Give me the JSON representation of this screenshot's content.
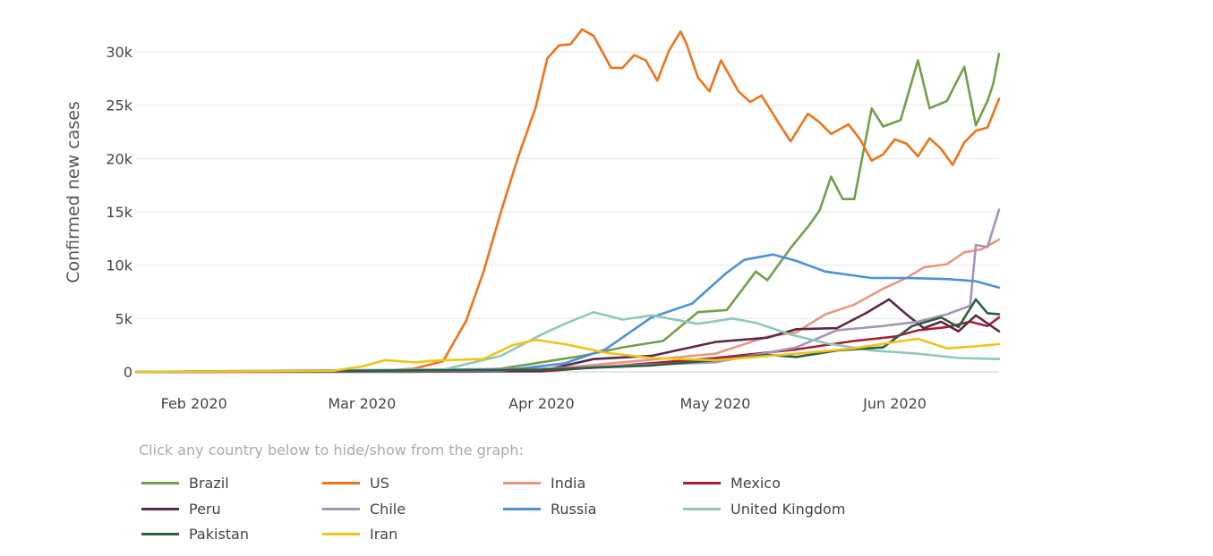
{
  "chart_data": {
    "type": "line",
    "ylabel": "Confirmed new cases",
    "xlabel": "",
    "ylim": [
      0,
      30000
    ],
    "yticks": [
      {
        "value": 0,
        "label": "0"
      },
      {
        "value": 5000,
        "label": "5k"
      },
      {
        "value": 10000,
        "label": "10k"
      },
      {
        "value": 15000,
        "label": "15k"
      },
      {
        "value": 20000,
        "label": "20k"
      },
      {
        "value": 25000,
        "label": "25k"
      },
      {
        "value": 30000,
        "label": "30k"
      }
    ],
    "x_range": [
      "2020-01-22",
      "2020-06-19"
    ],
    "xticks": [
      {
        "date": "2020-02-01",
        "label": "Feb 2020"
      },
      {
        "date": "2020-03-01",
        "label": "Mar 2020"
      },
      {
        "date": "2020-04-01",
        "label": "Apr 2020"
      },
      {
        "date": "2020-05-01",
        "label": "May 2020"
      },
      {
        "date": "2020-06-01",
        "label": "Jun 2020"
      }
    ],
    "grid": "horizontal",
    "legend_position": "bottom",
    "series": [
      {
        "name": "Brazil",
        "color": "#739e4b",
        "points": [
          [
            "2020-01-22",
            0
          ],
          [
            "2020-03-10",
            0
          ],
          [
            "2020-03-25",
            300
          ],
          [
            "2020-04-01",
            900
          ],
          [
            "2020-04-08",
            1500
          ],
          [
            "2020-04-15",
            2300
          ],
          [
            "2020-04-22",
            2900
          ],
          [
            "2020-04-28",
            5600
          ],
          [
            "2020-05-03",
            5800
          ],
          [
            "2020-05-08",
            9400
          ],
          [
            "2020-05-10",
            8600
          ],
          [
            "2020-05-14",
            11600
          ],
          [
            "2020-05-17",
            13600
          ],
          [
            "2020-05-19",
            15100
          ],
          [
            "2020-05-21",
            18300
          ],
          [
            "2020-05-23",
            16200
          ],
          [
            "2020-05-25",
            16200
          ],
          [
            "2020-05-28",
            24700
          ],
          [
            "2020-05-30",
            23000
          ],
          [
            "2020-06-02",
            23600
          ],
          [
            "2020-06-05",
            29200
          ],
          [
            "2020-06-07",
            24700
          ],
          [
            "2020-06-10",
            25400
          ],
          [
            "2020-06-13",
            28600
          ],
          [
            "2020-06-15",
            23100
          ],
          [
            "2020-06-17",
            25400
          ],
          [
            "2020-06-18",
            27000
          ],
          [
            "2020-06-19",
            29800
          ]
        ]
      },
      {
        "name": "US",
        "color": "#f0731c",
        "points": [
          [
            "2020-01-22",
            0
          ],
          [
            "2020-03-01",
            0
          ],
          [
            "2020-03-10",
            300
          ],
          [
            "2020-03-15",
            1000
          ],
          [
            "2020-03-19",
            4800
          ],
          [
            "2020-03-22",
            9400
          ],
          [
            "2020-03-25",
            15000
          ],
          [
            "2020-03-28",
            20200
          ],
          [
            "2020-03-31",
            24800
          ],
          [
            "2020-04-02",
            29400
          ],
          [
            "2020-04-04",
            30600
          ],
          [
            "2020-04-06",
            30700
          ],
          [
            "2020-04-08",
            32100
          ],
          [
            "2020-04-10",
            31500
          ],
          [
            "2020-04-13",
            28500
          ],
          [
            "2020-04-15",
            28500
          ],
          [
            "2020-04-17",
            29700
          ],
          [
            "2020-04-19",
            29200
          ],
          [
            "2020-04-21",
            27300
          ],
          [
            "2020-04-23",
            30100
          ],
          [
            "2020-04-25",
            31900
          ],
          [
            "2020-04-26",
            30800
          ],
          [
            "2020-04-28",
            27600
          ],
          [
            "2020-04-30",
            26300
          ],
          [
            "2020-05-02",
            29200
          ],
          [
            "2020-05-05",
            26300
          ],
          [
            "2020-05-07",
            25300
          ],
          [
            "2020-05-09",
            25900
          ],
          [
            "2020-05-12",
            23300
          ],
          [
            "2020-05-14",
            21600
          ],
          [
            "2020-05-17",
            24200
          ],
          [
            "2020-05-19",
            23400
          ],
          [
            "2020-05-21",
            22300
          ],
          [
            "2020-05-24",
            23200
          ],
          [
            "2020-05-26",
            21800
          ],
          [
            "2020-05-28",
            19800
          ],
          [
            "2020-05-30",
            20400
          ],
          [
            "2020-06-01",
            21800
          ],
          [
            "2020-06-03",
            21400
          ],
          [
            "2020-06-05",
            20200
          ],
          [
            "2020-06-07",
            21900
          ],
          [
            "2020-06-09",
            20900
          ],
          [
            "2020-06-11",
            19400
          ],
          [
            "2020-06-13",
            21500
          ],
          [
            "2020-06-15",
            22600
          ],
          [
            "2020-06-17",
            22900
          ],
          [
            "2020-06-19",
            25600
          ]
        ]
      },
      {
        "name": "India",
        "color": "#e8977f",
        "points": [
          [
            "2020-01-22",
            0
          ],
          [
            "2020-03-20",
            0
          ],
          [
            "2020-04-01",
            200
          ],
          [
            "2020-04-15",
            900
          ],
          [
            "2020-05-01",
            1700
          ],
          [
            "2020-05-10",
            3300
          ],
          [
            "2020-05-15",
            3700
          ],
          [
            "2020-05-20",
            5400
          ],
          [
            "2020-05-25",
            6300
          ],
          [
            "2020-05-30",
            7800
          ],
          [
            "2020-06-03",
            8800
          ],
          [
            "2020-06-06",
            9800
          ],
          [
            "2020-06-10",
            10100
          ],
          [
            "2020-06-13",
            11200
          ],
          [
            "2020-06-16",
            11500
          ],
          [
            "2020-06-19",
            12400
          ]
        ]
      },
      {
        "name": "Mexico",
        "color": "#a42133",
        "points": [
          [
            "2020-01-22",
            0
          ],
          [
            "2020-04-01",
            50
          ],
          [
            "2020-04-15",
            600
          ],
          [
            "2020-05-01",
            1300
          ],
          [
            "2020-05-15",
            2100
          ],
          [
            "2020-05-25",
            2900
          ],
          [
            "2020-06-01",
            3300
          ],
          [
            "2020-06-05",
            3900
          ],
          [
            "2020-06-10",
            4200
          ],
          [
            "2020-06-14",
            4700
          ],
          [
            "2020-06-17",
            4300
          ],
          [
            "2020-06-19",
            5100
          ]
        ]
      },
      {
        "name": "Peru",
        "color": "#5c2847",
        "points": [
          [
            "2020-01-22",
            0
          ],
          [
            "2020-04-01",
            100
          ],
          [
            "2020-04-10",
            1200
          ],
          [
            "2020-04-20",
            1500
          ],
          [
            "2020-05-01",
            2800
          ],
          [
            "2020-05-10",
            3200
          ],
          [
            "2020-05-15",
            4000
          ],
          [
            "2020-05-22",
            4100
          ],
          [
            "2020-05-27",
            5500
          ],
          [
            "2020-05-31",
            6800
          ],
          [
            "2020-06-03",
            5400
          ],
          [
            "2020-06-06",
            4100
          ],
          [
            "2020-06-09",
            4700
          ],
          [
            "2020-06-12",
            3800
          ],
          [
            "2020-06-15",
            5300
          ],
          [
            "2020-06-19",
            3800
          ]
        ]
      },
      {
        "name": "Chile",
        "color": "#a694b5",
        "points": [
          [
            "2020-01-22",
            0
          ],
          [
            "2020-04-01",
            300
          ],
          [
            "2020-05-01",
            900
          ],
          [
            "2020-05-15",
            2300
          ],
          [
            "2020-05-22",
            3900
          ],
          [
            "2020-05-30",
            4300
          ],
          [
            "2020-06-05",
            4700
          ],
          [
            "2020-06-10",
            5400
          ],
          [
            "2020-06-14",
            6200
          ],
          [
            "2020-06-15",
            11900
          ],
          [
            "2020-06-17",
            11700
          ],
          [
            "2020-06-19",
            15200
          ]
        ]
      },
      {
        "name": "Russia",
        "color": "#4d91d5",
        "points": [
          [
            "2020-01-22",
            0
          ],
          [
            "2020-03-25",
            100
          ],
          [
            "2020-04-05",
            800
          ],
          [
            "2020-04-12",
            2100
          ],
          [
            "2020-04-20",
            5100
          ],
          [
            "2020-04-27",
            6400
          ],
          [
            "2020-05-03",
            9300
          ],
          [
            "2020-05-06",
            10500
          ],
          [
            "2020-05-11",
            11000
          ],
          [
            "2020-05-15",
            10400
          ],
          [
            "2020-05-20",
            9400
          ],
          [
            "2020-05-28",
            8800
          ],
          [
            "2020-06-03",
            8800
          ],
          [
            "2020-06-10",
            8700
          ],
          [
            "2020-06-15",
            8500
          ],
          [
            "2020-06-19",
            7900
          ]
        ]
      },
      {
        "name": "United Kingdom",
        "color": "#8ec8bb",
        "points": [
          [
            "2020-01-22",
            0
          ],
          [
            "2020-03-15",
            200
          ],
          [
            "2020-03-25",
            1500
          ],
          [
            "2020-04-01",
            3500
          ],
          [
            "2020-04-05",
            4500
          ],
          [
            "2020-04-10",
            5600
          ],
          [
            "2020-04-15",
            4900
          ],
          [
            "2020-04-20",
            5300
          ],
          [
            "2020-04-28",
            4500
          ],
          [
            "2020-05-04",
            5000
          ],
          [
            "2020-05-08",
            4600
          ],
          [
            "2020-05-14",
            3500
          ],
          [
            "2020-05-20",
            2700
          ],
          [
            "2020-05-28",
            2000
          ],
          [
            "2020-06-05",
            1700
          ],
          [
            "2020-06-12",
            1300
          ],
          [
            "2020-06-19",
            1200
          ]
        ]
      },
      {
        "name": "Pakistan",
        "color": "#2d5e3e",
        "points": [
          [
            "2020-01-22",
            0
          ],
          [
            "2020-04-01",
            200
          ],
          [
            "2020-04-20",
            600
          ],
          [
            "2020-05-01",
            1100
          ],
          [
            "2020-05-10",
            1600
          ],
          [
            "2020-05-15",
            1400
          ],
          [
            "2020-05-22",
            2000
          ],
          [
            "2020-05-30",
            2300
          ],
          [
            "2020-06-04",
            4300
          ],
          [
            "2020-06-09",
            5100
          ],
          [
            "2020-06-12",
            4200
          ],
          [
            "2020-06-15",
            6800
          ],
          [
            "2020-06-17",
            5500
          ],
          [
            "2020-06-19",
            5400
          ]
        ]
      },
      {
        "name": "Iran",
        "color": "#efc31a",
        "points": [
          [
            "2020-01-22",
            0
          ],
          [
            "2020-02-25",
            100
          ],
          [
            "2020-03-01",
            500
          ],
          [
            "2020-03-05",
            1100
          ],
          [
            "2020-03-10",
            900
          ],
          [
            "2020-03-15",
            1100
          ],
          [
            "2020-03-22",
            1200
          ],
          [
            "2020-03-27",
            2500
          ],
          [
            "2020-03-31",
            3000
          ],
          [
            "2020-04-05",
            2600
          ],
          [
            "2020-04-12",
            1800
          ],
          [
            "2020-04-20",
            1300
          ],
          [
            "2020-05-01",
            1100
          ],
          [
            "2020-05-15",
            1700
          ],
          [
            "2020-05-25",
            2200
          ],
          [
            "2020-06-01",
            2800
          ],
          [
            "2020-06-05",
            3100
          ],
          [
            "2020-06-10",
            2200
          ],
          [
            "2020-06-15",
            2400
          ],
          [
            "2020-06-19",
            2600
          ]
        ]
      }
    ]
  },
  "legend_hint": "Click any country below to hide/show from the graph:"
}
